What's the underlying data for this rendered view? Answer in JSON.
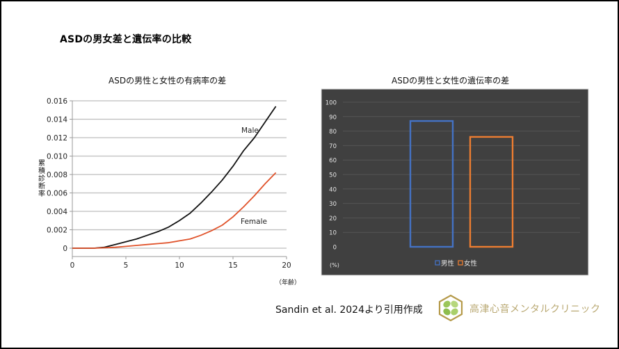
{
  "page": {
    "title": "ASDの男女差と遺伝率の比較",
    "citation": "Sandin et al. 2024より引用作成",
    "clinic_name": "高津心音メンタルクリニック",
    "logo_icon": "hexagon-clover-logo-icon"
  },
  "colors": {
    "male_line": "#111111",
    "female_line": "#e0522a",
    "male_bar": "#4472c4",
    "female_bar": "#ed7d31",
    "right_panel_bg": "#404040",
    "clinic_text": "#b9a872"
  },
  "left_chart": {
    "title": "ASDの男性と女性の有病率の差",
    "ylabel": "累積診断率",
    "xunit": "（年齢）",
    "series_labels": {
      "male": "Male",
      "female": "Female"
    }
  },
  "right_chart": {
    "title": "ASDの男性と女性の遺伝率の差",
    "unit_label": "(%)",
    "legend": {
      "male": "男性",
      "female": "女性"
    }
  },
  "chart_data": [
    {
      "type": "line",
      "title": "ASDの男性と女性の有病率の差",
      "xlabel": "（年齢）",
      "ylabel": "累積診断率",
      "xlim": [
        0,
        20
      ],
      "ylim": [
        0,
        0.016
      ],
      "xticks": [
        0,
        5,
        10,
        15,
        20
      ],
      "yticks": [
        0,
        0.002,
        0.004,
        0.006,
        0.008,
        0.01,
        0.012,
        0.014,
        0.016
      ],
      "ytick_labels": [
        "0",
        "0.002",
        "0.004",
        "0.006",
        "0.008",
        "0.010",
        "0.012",
        "0.014",
        "0.016"
      ],
      "grid": "horizontal",
      "legend_position": "inline labels",
      "x": [
        0,
        1,
        2,
        3,
        4,
        5,
        6,
        7,
        8,
        9,
        10,
        11,
        12,
        13,
        14,
        15,
        16,
        17,
        18,
        19
      ],
      "series": [
        {
          "name": "Male",
          "values": [
            0,
            0,
            0,
            0.0001,
            0.0004,
            0.0007,
            0.001,
            0.0014,
            0.0018,
            0.0023,
            0.003,
            0.0038,
            0.0049,
            0.0061,
            0.0074,
            0.0089,
            0.0106,
            0.012,
            0.0137,
            0.0154
          ]
        },
        {
          "name": "Female",
          "values": [
            0,
            0,
            0,
            5e-05,
            0.0001,
            0.0002,
            0.0003,
            0.0004,
            0.0005,
            0.0006,
            0.0008,
            0.001,
            0.0014,
            0.0019,
            0.0025,
            0.0034,
            0.0045,
            0.0057,
            0.007,
            0.0082
          ]
        }
      ]
    },
    {
      "type": "bar",
      "title": "ASDの男性と女性の遺伝率の差",
      "categories": [
        "男性",
        "女性"
      ],
      "values": [
        87,
        76
      ],
      "ylabel": "(%)",
      "ylim": [
        0,
        100
      ],
      "yticks": [
        0,
        10,
        20,
        30,
        40,
        50,
        60,
        70,
        80,
        90,
        100
      ],
      "grid": "horizontal",
      "legend_position": "bottom",
      "bar_style": "outline"
    }
  ]
}
